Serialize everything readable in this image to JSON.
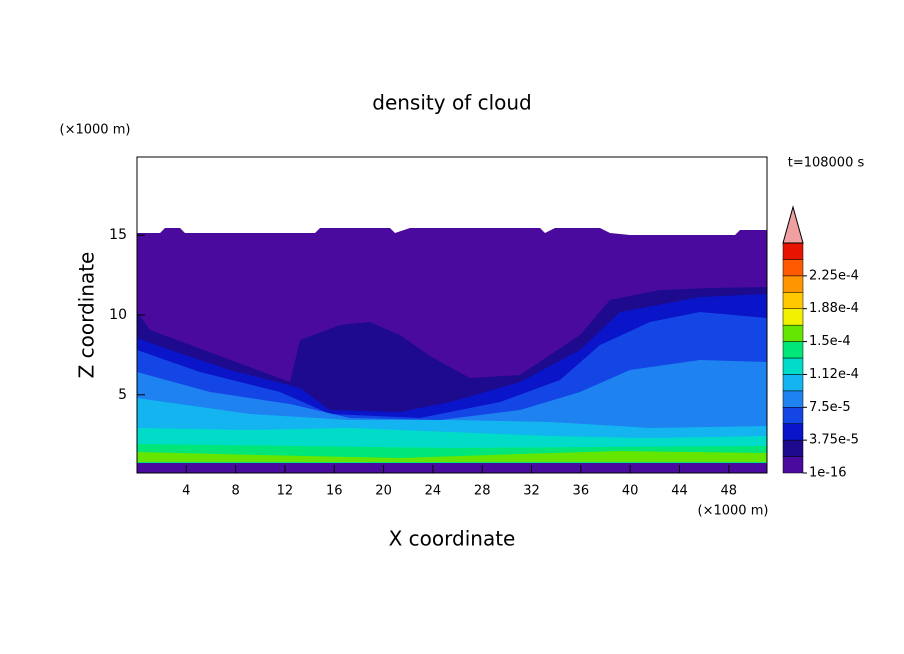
{
  "chart_data": {
    "type": "contour",
    "title": "density of cloud",
    "annotation": "t=108000 s",
    "xlabel": "X coordinate",
    "ylabel": "Z coordinate",
    "xunit": "(×1000 m)",
    "yunit": "(×1000 m)",
    "xlim": [
      0,
      51.1
    ],
    "ylim": [
      0.1,
      19.9
    ],
    "xticks": [
      4,
      8,
      12,
      16,
      20,
      24,
      28,
      32,
      36,
      40,
      44,
      48
    ],
    "yticks": [
      5,
      10,
      15
    ],
    "colorbar": {
      "clim": [
        1e-16,
        0.0002625
      ],
      "colors": [
        "#4b0a9e",
        "#1e0a8c",
        "#0a14c8",
        "#1446e6",
        "#1e82f0",
        "#14b4f0",
        "#00dcc8",
        "#00e678",
        "#64e600",
        "#f0f000",
        "#ffc800",
        "#ff9600",
        "#ff5a00",
        "#e61400"
      ],
      "extend_color": "#f0a0a0",
      "ticks": [
        1e-16,
        {
          "value": 3.75e-05,
          "label": "3.75e-5"
        },
        {
          "value": 7.5e-05,
          "label": "7.5e-5"
        },
        {
          "value": 0.0001125,
          "label": "1.12e-4"
        },
        {
          "value": 0.00015,
          "label": "1.5e-4"
        },
        {
          "value": 0.0001875,
          "label": "1.88e-4"
        },
        {
          "value": 0.000225,
          "label": "2.25e-4"
        }
      ]
    }
  }
}
